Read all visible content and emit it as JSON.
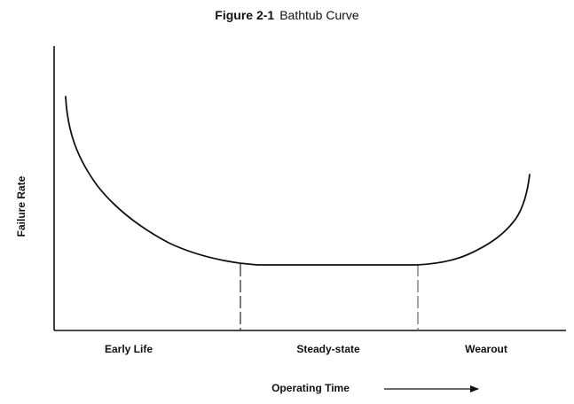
{
  "figure": {
    "number": "Figure 2-1",
    "title": "Bathtub Curve"
  },
  "chart_data": {
    "type": "line",
    "title": "Bathtub Curve",
    "xlabel": "Operating Time",
    "ylabel": "Failure Rate",
    "phases": [
      "Early Life",
      "Steady-state",
      "Wearout"
    ],
    "grid": false,
    "legend": "none"
  }
}
